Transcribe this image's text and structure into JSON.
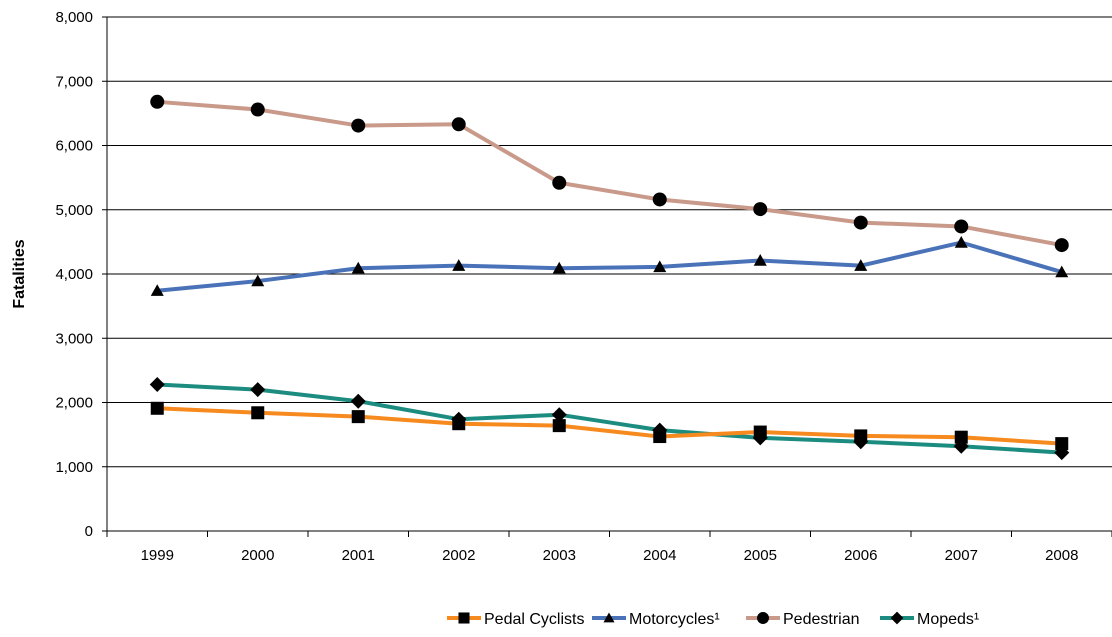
{
  "chart_data": {
    "type": "line",
    "title": "",
    "xlabel": "",
    "ylabel": "Fatalities",
    "categories": [
      "1999",
      "2000",
      "2001",
      "2002",
      "2003",
      "2004",
      "2005",
      "2006",
      "2007",
      "2008"
    ],
    "ylim": [
      0,
      8000
    ],
    "yticks": [
      "0",
      "1,000",
      "2,000",
      "3,000",
      "4,000",
      "5,000",
      "6,000",
      "7,000",
      "8,000"
    ],
    "ytick_values": [
      0,
      1000,
      2000,
      3000,
      4000,
      5000,
      6000,
      7000,
      8000
    ],
    "grid": true,
    "legend_position": "bottom-right",
    "series": [
      {
        "name": "Pedestrian",
        "color": "#c9998a",
        "marker": "circle",
        "values": [
          6680,
          6560,
          6310,
          6330,
          5420,
          5160,
          5010,
          4800,
          4740,
          4450
        ]
      },
      {
        "name": "Motorcycles¹",
        "color": "#4a72b8",
        "marker": "triangle",
        "values": [
          3740,
          3890,
          4090,
          4130,
          4090,
          4110,
          4210,
          4130,
          4490,
          4030
        ]
      },
      {
        "name": "Mopeds¹",
        "color": "#1c8c80",
        "marker": "diamond",
        "values": [
          2280,
          2200,
          2020,
          1740,
          1810,
          1570,
          1450,
          1390,
          1320,
          1220
        ]
      },
      {
        "name": "Pedal Cyclists",
        "color": "#f78a1e",
        "marker": "square",
        "values": [
          1910,
          1840,
          1780,
          1670,
          1640,
          1470,
          1540,
          1480,
          1460,
          1360
        ]
      }
    ],
    "legend": [
      "Pedal Cyclists",
      "Motorcycles¹",
      "Pedestrian",
      "Mopeds¹"
    ]
  }
}
